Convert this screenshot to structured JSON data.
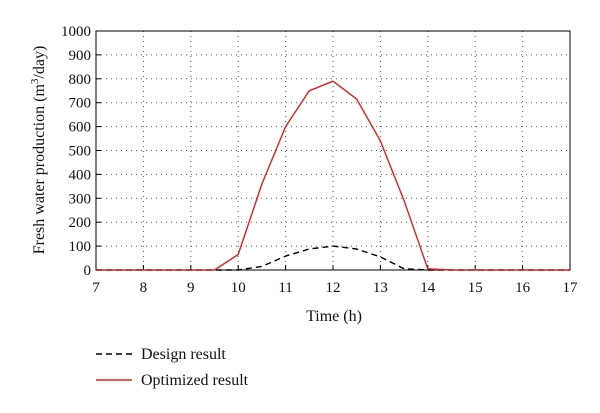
{
  "chart_data": {
    "type": "line",
    "title": "",
    "xlabel": "Time (h)",
    "ylabel": {
      "main": "Fresh water production (m",
      "sup": "3",
      "tail": "/day)"
    },
    "xlim": [
      7,
      17
    ],
    "ylim": [
      0,
      1000
    ],
    "xticks": [
      "7",
      "8",
      "9",
      "10",
      "11",
      "12",
      "13",
      "14",
      "15",
      "16",
      "17"
    ],
    "yticks": [
      "0",
      "100",
      "200",
      "300",
      "400",
      "500",
      "600",
      "700",
      "800",
      "900",
      "1000"
    ],
    "grid": true,
    "legend_position": "below",
    "series": [
      {
        "name": "Design result",
        "color": "#000000",
        "dash": "dashed",
        "points": [
          [
            7,
            0
          ],
          [
            9.5,
            0
          ],
          [
            10,
            0
          ],
          [
            10.5,
            15
          ],
          [
            11,
            58
          ],
          [
            11.5,
            88
          ],
          [
            12,
            100
          ],
          [
            12.5,
            88
          ],
          [
            13,
            55
          ],
          [
            13.5,
            5
          ],
          [
            14,
            0
          ],
          [
            17,
            0
          ]
        ]
      },
      {
        "name": "Optimized result",
        "color": "#e02020",
        "dash": "solid",
        "points": [
          [
            7,
            0
          ],
          [
            9.5,
            0
          ],
          [
            10,
            65
          ],
          [
            10.5,
            360
          ],
          [
            11,
            600
          ],
          [
            11.5,
            750
          ],
          [
            12,
            790
          ],
          [
            12.5,
            715
          ],
          [
            13,
            540
          ],
          [
            13.5,
            290
          ],
          [
            14,
            5
          ],
          [
            14.5,
            0
          ],
          [
            17,
            0
          ]
        ]
      }
    ]
  }
}
